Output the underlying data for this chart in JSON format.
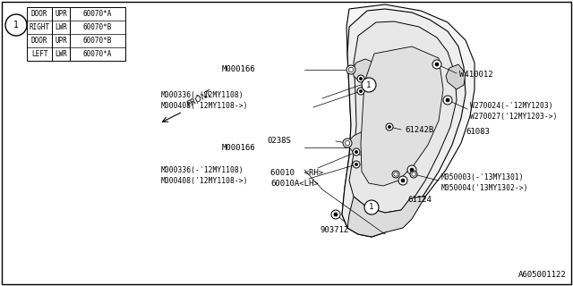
{
  "bg_color": "#ffffff",
  "footer": "A605001122",
  "table": {
    "rows": [
      [
        "DOOR",
        "UPR",
        "60070*A"
      ],
      [
        "RIGHT",
        "LWR",
        "60070*B"
      ],
      [
        "DOOR",
        "UPR",
        "60070*B"
      ],
      [
        "LEFT",
        "LWR",
        "60070*A"
      ]
    ]
  }
}
